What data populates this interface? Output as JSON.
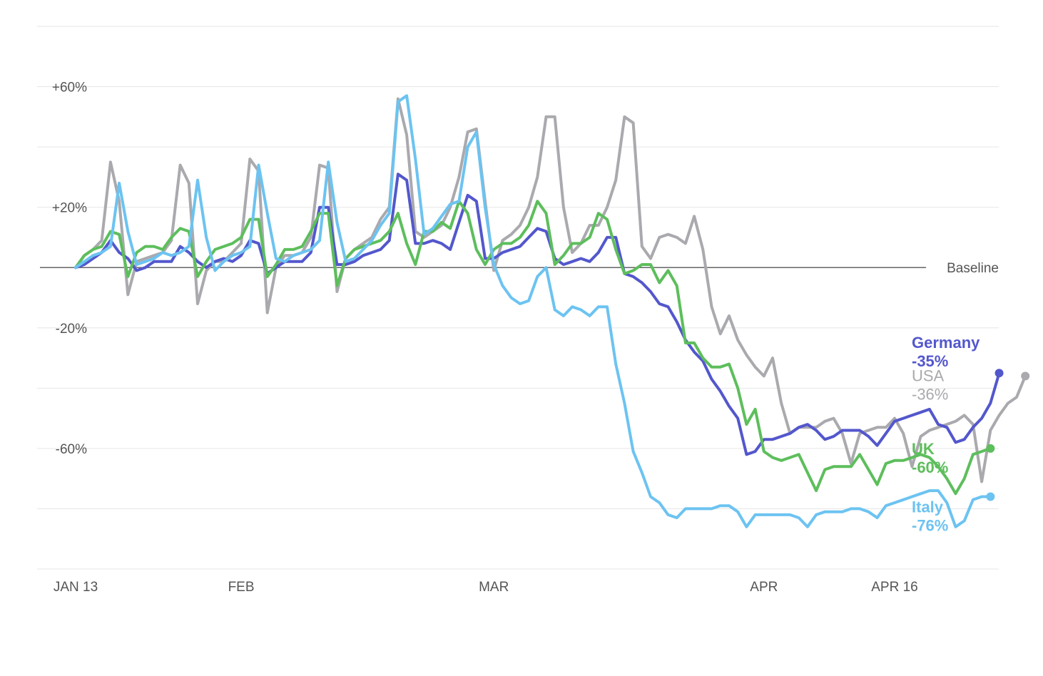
{
  "chart_data": {
    "type": "line",
    "title": "",
    "xlabel": "",
    "ylabel": "",
    "ylim": [
      -100,
      80
    ],
    "y_ticks": [
      {
        "value": 60,
        "label": "+60%"
      },
      {
        "value": 20,
        "label": "+20%"
      },
      {
        "value": -20,
        "label": "-20%"
      },
      {
        "value": -60,
        "label": "-60%"
      }
    ],
    "grid_values": [
      80,
      60,
      40,
      20,
      -20,
      -40,
      -60,
      -80,
      -100
    ],
    "grid": true,
    "baseline": {
      "value": 0,
      "label": "Baseline"
    },
    "x_start": "2020-01-13",
    "x_end": "2020-04-16",
    "x_ticks": [
      {
        "date": "2020-01-13",
        "label": "JAN 13"
      },
      {
        "date": "2020-02-01",
        "label": "FEB"
      },
      {
        "date": "2020-03-01",
        "label": "MAR"
      },
      {
        "date": "2020-04-01",
        "label": "APR"
      },
      {
        "date": "2020-04-16",
        "label": "APR 16"
      }
    ],
    "series": [
      {
        "name": "USA",
        "end_value_label": "-36%",
        "color": "#a9a9ae",
        "values": [
          0,
          4,
          6,
          9,
          35,
          22,
          -9,
          2,
          3,
          4,
          5,
          9,
          34,
          28,
          -12,
          -1,
          2,
          2,
          5,
          8,
          36,
          32,
          -15,
          0,
          4,
          4,
          5,
          10,
          34,
          33,
          -8,
          3,
          6,
          8,
          10,
          16,
          20,
          56,
          44,
          12,
          10,
          12,
          14,
          20,
          30,
          45,
          46,
          22,
          -1,
          9,
          11,
          14,
          20,
          30,
          50,
          50,
          20,
          5,
          8,
          14,
          14,
          20,
          29,
          50,
          48,
          7,
          3,
          10,
          11,
          10,
          8,
          17,
          6,
          -13,
          -22,
          -16,
          -24,
          -29,
          -33,
          -36,
          -30,
          -45,
          -55,
          -53,
          -53,
          -53,
          -51,
          -50,
          -55,
          -65,
          -55,
          -54,
          -53,
          -53,
          -50,
          -55,
          -66,
          -56,
          -54,
          -53,
          -52,
          -51,
          -49,
          -52,
          -71,
          -54,
          -49,
          -45,
          -43,
          -36
        ]
      },
      {
        "name": "Germany",
        "end_value_label": "-35%",
        "color": "#5357cc",
        "values": [
          0,
          1,
          3,
          5,
          9,
          5,
          3,
          -1,
          0,
          2,
          2,
          2,
          7,
          5,
          2,
          0,
          2,
          3,
          2,
          4,
          9,
          8,
          -2,
          0,
          2,
          2,
          2,
          5,
          20,
          20,
          1,
          1,
          2,
          4,
          5,
          6,
          9,
          31,
          29,
          8,
          8,
          9,
          8,
          6,
          15,
          24,
          22,
          3,
          3,
          5,
          6,
          7,
          10,
          13,
          12,
          3,
          1,
          2,
          3,
          2,
          5,
          10,
          10,
          -2,
          -3,
          -5,
          -8,
          -12,
          -13,
          -18,
          -24,
          -28,
          -31,
          -37,
          -41,
          -46,
          -50,
          -62,
          -61,
          -57,
          -57,
          -56,
          -55,
          -53,
          -52,
          -54,
          -57,
          -56,
          -54,
          -54,
          -54,
          -56,
          -59,
          -55,
          -51,
          -50,
          -49,
          -48,
          -47,
          -52,
          -53,
          -58,
          -57,
          -53,
          -50,
          -45,
          -35
        ]
      },
      {
        "name": "UK",
        "end_value_label": "-60%",
        "color": "#5dbe5c",
        "values": [
          0,
          4,
          6,
          7,
          12,
          11,
          -3,
          5,
          7,
          7,
          6,
          10,
          13,
          12,
          -3,
          2,
          6,
          7,
          8,
          10,
          16,
          16,
          -3,
          1,
          6,
          6,
          7,
          12,
          18,
          18,
          -6,
          3,
          6,
          7,
          8,
          9,
          12,
          18,
          8,
          1,
          12,
          12,
          15,
          13,
          22,
          18,
          6,
          1,
          6,
          8,
          8,
          10,
          14,
          22,
          18,
          1,
          4,
          8,
          8,
          10,
          18,
          16,
          6,
          -2,
          -1,
          1,
          1,
          -5,
          -1,
          -6,
          -25,
          -25,
          -30,
          -33,
          -33,
          -32,
          -40,
          -52,
          -47,
          -61,
          -63,
          -64,
          -63,
          -62,
          -68,
          -74,
          -67,
          -66,
          -66,
          -66,
          -62,
          -67,
          -72,
          -65,
          -64,
          -64,
          -63,
          -62,
          -63,
          -66,
          -70,
          -75,
          -70,
          -62,
          -61,
          -60
        ]
      },
      {
        "name": "Italy",
        "end_value_label": "-76%",
        "color": "#6cc3f1",
        "values": [
          0,
          2,
          4,
          5,
          7,
          28,
          12,
          1,
          2,
          3,
          5,
          4,
          5,
          7,
          29,
          10,
          -1,
          2,
          4,
          5,
          7,
          34,
          18,
          3,
          2,
          4,
          5,
          6,
          9,
          35,
          15,
          2,
          3,
          6,
          9,
          14,
          18,
          55,
          57,
          36,
          11,
          13,
          17,
          21,
          22,
          40,
          45,
          20,
          1,
          -6,
          -10,
          -12,
          -11,
          -3,
          0,
          -14,
          -16,
          -13,
          -14,
          -16,
          -13,
          -13,
          -32,
          -45,
          -61,
          -68,
          -76,
          -78,
          -82,
          -83,
          -80,
          -80,
          -80,
          -80,
          -79,
          -79,
          -81,
          -86,
          -82,
          -82,
          -82,
          -82,
          -82,
          -83,
          -86,
          -82,
          -81,
          -81,
          -81,
          -80,
          -80,
          -81,
          -83,
          -79,
          -78,
          -77,
          -76,
          -75,
          -74,
          -74,
          -78,
          -86,
          -84,
          -77,
          -76,
          -76
        ]
      }
    ]
  }
}
